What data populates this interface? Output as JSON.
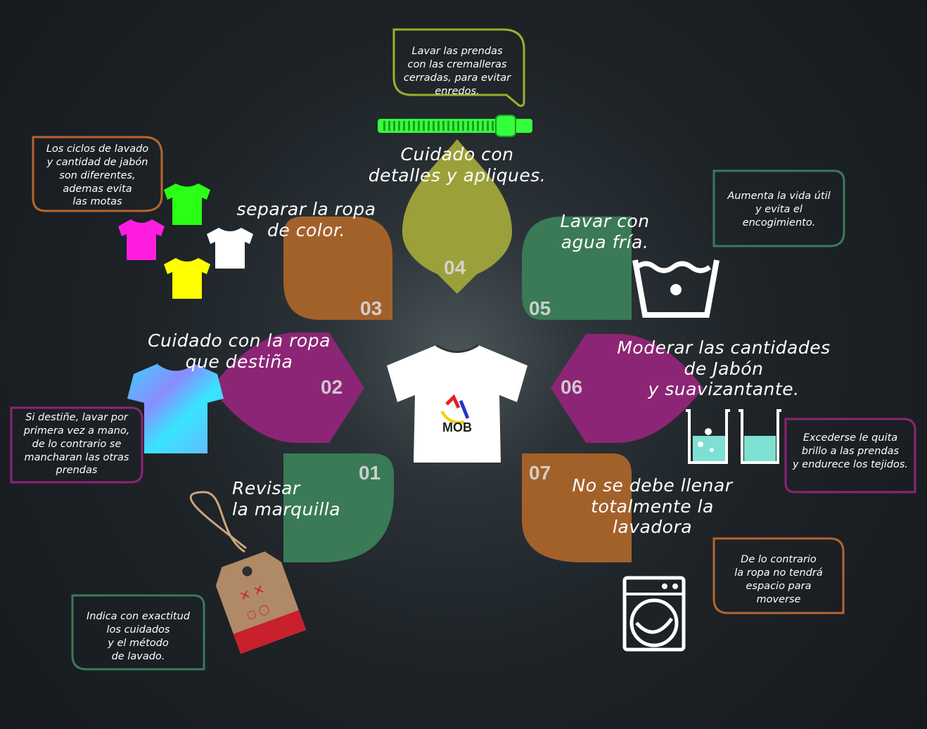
{
  "center": {
    "logo_text": "MOB"
  },
  "steps": [
    {
      "number": "01",
      "title": "Revisar\nla marquilla",
      "note": "Indica con exactitud\nlos cuidados\ny el método\nde lavado.",
      "color": "#3a7a57"
    },
    {
      "number": "02",
      "title": "Cuidado con la ropa\nque destiña",
      "note": "Si destiñe, lavar por\nprimera vez a mano,\nde lo contrario se\nmancharan las otras\nprendas",
      "color": "#8c2575"
    },
    {
      "number": "03",
      "title": "separar la ropa\nde color.",
      "note": "Los ciclos de lavado\ny cantidad de jabón\nson diferentes,\nademas evita\nlas motas",
      "color": "#a3612a"
    },
    {
      "number": "04",
      "title": "Cuidado con\ndetalles y apliques.",
      "note": "Lavar las prendas\ncon las cremalleras\ncerradas, para evitar\nenredos.",
      "color": "#9ca03a"
    },
    {
      "number": "05",
      "title": "Lavar con\nagua fría.",
      "note": "Aumenta la vida útil\ny evita el\nencogimiento.",
      "color": "#3a7a57"
    },
    {
      "number": "06",
      "title": "Moderar las cantidades\nde Jabón\ny suavizantante.",
      "note": "Excederse le quita\nbrillo a las prendas\ny endurece los tejidos.",
      "color": "#8c2575"
    },
    {
      "number": "07",
      "title": "No se debe llenar\ntotalmente la\nlavadora",
      "note": "De lo contrario\nla ropa no tendrá\nespacio para\nmoverse",
      "color": "#a3612a"
    }
  ],
  "icons": [
    "tag-icon",
    "tie-dye-shirt-icon",
    "color-shirts-icon",
    "zipper-icon",
    "cold-wash-icon",
    "beakers-icon",
    "washing-machine-icon"
  ],
  "colors": {
    "zipper": "#34ff3c",
    "beaker_liquid": "#7de0d2",
    "tag_red": "#c8202c"
  }
}
